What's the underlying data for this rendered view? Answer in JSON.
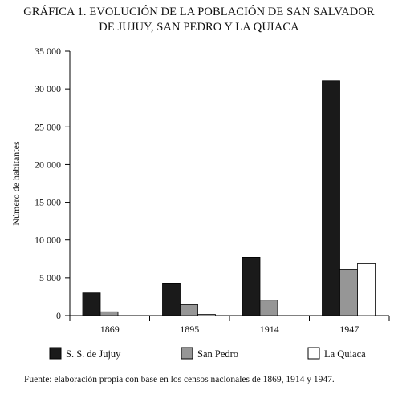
{
  "figure": {
    "title_line1": "GRÁFICA 1. EVOLUCIÓN DE LA POBLACIÓN DE SAN SALVADOR",
    "title_line2": "DE JUJUY, SAN PEDRO Y LA QUIACA",
    "source": "Fuente: elaboración propia con base en los censos nacionales de 1869, 1914 y 1947."
  },
  "chart_data": {
    "type": "bar",
    "title": "GRÁFICA 1. EVOLUCIÓN DE LA POBLACIÓN DE SAN SALVADOR DE JUJUY, SAN PEDRO Y LA QUIACA",
    "xlabel": "",
    "ylabel": "Número de habitantes",
    "categories": [
      "1869",
      "1895",
      "1914",
      "1947"
    ],
    "ylim": [
      0,
      35000
    ],
    "yticks": [
      0,
      5000,
      10000,
      15000,
      20000,
      25000,
      30000,
      35000
    ],
    "ytick_labels": [
      "0",
      "5 000",
      "10 000",
      "15 000",
      "20 000",
      "25 000",
      "30 000",
      "35 000"
    ],
    "series": [
      {
        "name": "S. S. de Jujuy",
        "color": "#1a1a1a",
        "values": [
          3000,
          4200,
          7700,
          31100
        ]
      },
      {
        "name": "San Pedro",
        "color": "#969696",
        "values": [
          500,
          1450,
          2050,
          6100
        ]
      },
      {
        "name": "La Quiaca",
        "color": "#ffffff",
        "values": [
          0,
          150,
          0,
          6850
        ]
      }
    ],
    "grid": false,
    "legend_position": "bottom"
  }
}
